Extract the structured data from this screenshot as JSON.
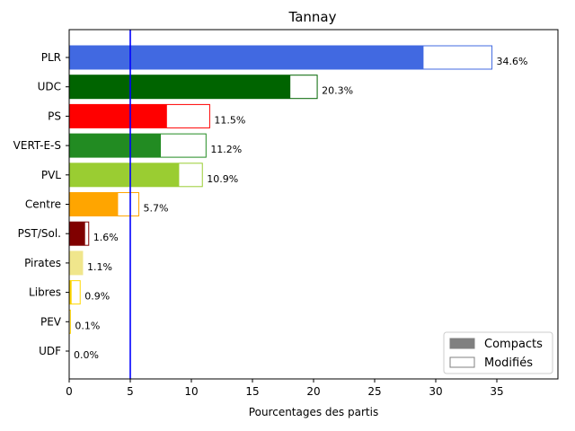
{
  "chart_data": {
    "type": "bar",
    "orientation": "horizontal",
    "title": "Tannay",
    "xlabel": "Pourcentages des partis",
    "ylabel": "",
    "xlim": [
      0,
      40
    ],
    "xticks": [
      0,
      5,
      10,
      15,
      20,
      25,
      30,
      35
    ],
    "threshold": 5,
    "threshold_color": "#0000ff",
    "categories": [
      "PLR",
      "UDC",
      "PS",
      "VERT-E-S",
      "PVL",
      "Centre",
      "PST/Sol.",
      "Pirates",
      "Libres",
      "PEV",
      "UDF"
    ],
    "series": [
      {
        "name": "Compacts",
        "values": [
          29.0,
          18.1,
          8.0,
          7.5,
          9.0,
          4.0,
          1.3,
          1.1,
          0.2,
          0.0,
          0.0
        ]
      },
      {
        "name": "Modifiés",
        "values": [
          34.6,
          20.3,
          11.5,
          11.2,
          10.9,
          5.7,
          1.6,
          1.1,
          0.9,
          0.1,
          0.0
        ]
      }
    ],
    "value_labels": [
      "34.6%",
      "20.3%",
      "11.5%",
      "11.2%",
      "10.9%",
      "5.7%",
      "1.6%",
      "1.1%",
      "0.9%",
      "0.1%",
      "0.0%"
    ],
    "colors": [
      "#4169e1",
      "#006400",
      "#ff0000",
      "#228b22",
      "#9acd32",
      "#ffa500",
      "#800000",
      "#f0e68c",
      "#ffd700",
      "#ffd700",
      "#ffd700"
    ],
    "legend": {
      "placement": "lower-right",
      "items": [
        {
          "label": "Compacts",
          "fill": "#808080",
          "stroke": "#808080"
        },
        {
          "label": "Modifiés",
          "fill": "#ffffff",
          "stroke": "#808080"
        }
      ]
    }
  }
}
